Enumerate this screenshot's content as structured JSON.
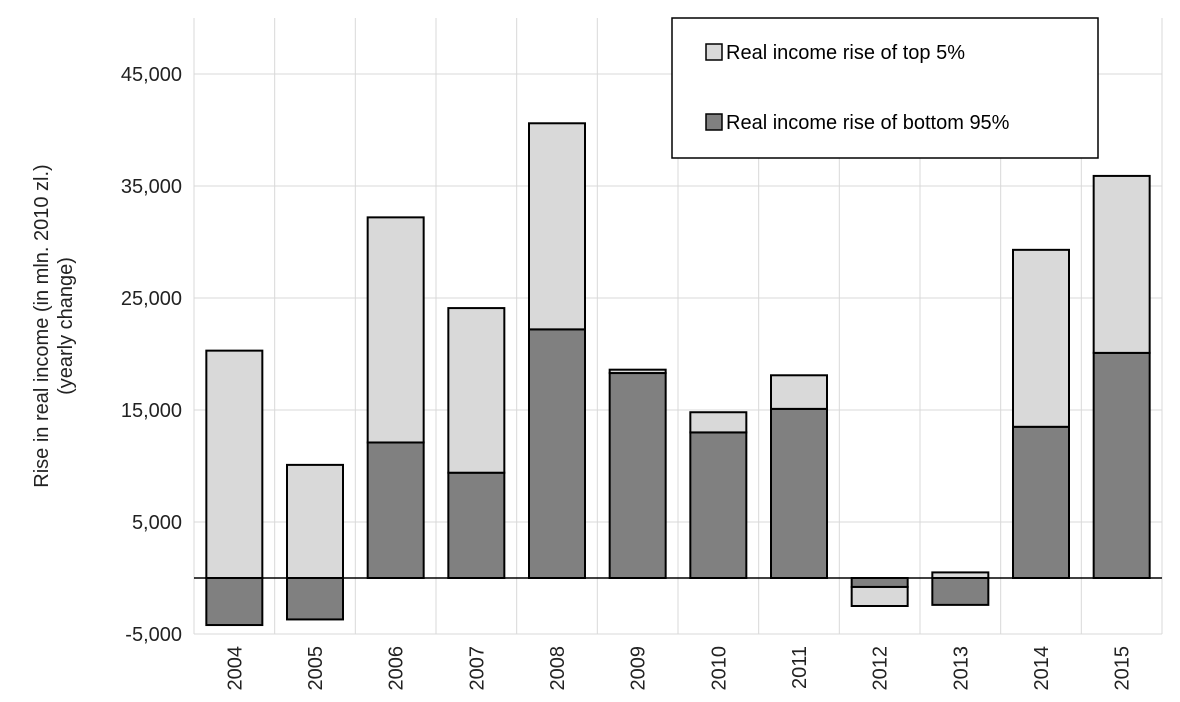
{
  "chart_data": {
    "type": "bar",
    "stacked": true,
    "categories": [
      "2004",
      "2005",
      "2006",
      "2007",
      "2008",
      "2009",
      "2010",
      "2011",
      "2012",
      "2013",
      "2014",
      "2015"
    ],
    "series": [
      {
        "name": "Real income rise of bottom 95%",
        "color": "#808080",
        "values": [
          -4200,
          -3700,
          12100,
          9400,
          22200,
          18300,
          13000,
          15100,
          -800,
          -2400,
          13500,
          20100
        ]
      },
      {
        "name": "Real income rise of top 5%",
        "color": "#d9d9d9",
        "values": [
          20300,
          10100,
          20100,
          14700,
          18400,
          300,
          1800,
          3000,
          -1700,
          500,
          15800,
          15800
        ]
      }
    ],
    "ylabel_lines": [
      "Rise in real income (in mln. 2010 zl.)",
      "(yearly change)"
    ],
    "ylim": [
      -5000,
      50000
    ],
    "yticks": [
      -5000,
      5000,
      15000,
      25000,
      35000,
      45000
    ],
    "ytick_labels": [
      "-5,000",
      "5,000",
      "15,000",
      "25,000",
      "35,000",
      "45,000"
    ],
    "legend_order": [
      "Real income rise of top 5%",
      "Real income rise of bottom 95%"
    ],
    "legend_position": "top-right",
    "grid": true
  }
}
